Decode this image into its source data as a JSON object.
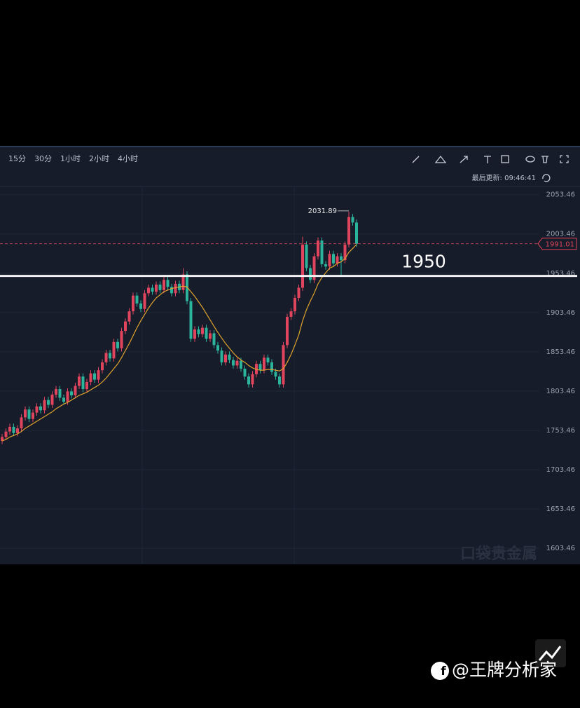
{
  "chart_data": {
    "type": "candlestick",
    "toolbar": {
      "intervals": [
        "15分",
        "30分",
        "1小时",
        "2小时",
        "4小时"
      ],
      "last_update": "最后更新: 09:46:41"
    },
    "ylim": [
      1583,
      2063
    ],
    "yticks": [
      2053.46,
      2003.46,
      1953.46,
      1903.46,
      1853.46,
      1803.46,
      1753.46,
      1703.46,
      1653.46,
      1603.46
    ],
    "up_color": "#e0455d",
    "down_color": "#2bb39c",
    "open": [
      1740,
      1745,
      1752,
      1758,
      1750,
      1756,
      1770,
      1780,
      1768,
      1776,
      1784,
      1779,
      1792,
      1786,
      1799,
      1806,
      1795,
      1790,
      1803,
      1798,
      1810,
      1822,
      1806,
      1815,
      1826,
      1818,
      1830,
      1840,
      1852,
      1845,
      1866,
      1858,
      1880,
      1892,
      1905,
      1925,
      1915,
      1908,
      1928,
      1935,
      1930,
      1939,
      1932,
      1945,
      1936,
      1928,
      1940,
      1932,
      1952,
      1918,
      1870,
      1882,
      1876,
      1884,
      1870,
      1877,
      1862,
      1855,
      1840,
      1850,
      1843,
      1836,
      1842,
      1832,
      1822,
      1812,
      1825,
      1838,
      1830,
      1846,
      1840,
      1828,
      1822,
      1812,
      1862,
      1898,
      1905,
      1922,
      1935,
      1990,
      1960,
      1945,
      1975,
      1995,
      1965,
      1962,
      1978,
      1966,
      1975,
      1970,
      1990,
      2025,
      2018
    ],
    "high": [
      1749,
      1756,
      1762,
      1762,
      1760,
      1774,
      1784,
      1784,
      1780,
      1788,
      1788,
      1796,
      1796,
      1803,
      1810,
      1810,
      1799,
      1807,
      1807,
      1814,
      1826,
      1826,
      1819,
      1830,
      1830,
      1834,
      1844,
      1856,
      1856,
      1870,
      1870,
      1884,
      1896,
      1909,
      1929,
      1929,
      1919,
      1932,
      1939,
      1939,
      1943,
      1943,
      1949,
      1949,
      1940,
      1944,
      1944,
      1960,
      1956,
      1922,
      1886,
      1886,
      1888,
      1888,
      1881,
      1881,
      1866,
      1859,
      1854,
      1854,
      1847,
      1846,
      1846,
      1836,
      1826,
      1829,
      1842,
      1842,
      1850,
      1850,
      1844,
      1832,
      1826,
      1866,
      1902,
      1909,
      1926,
      1939,
      2000,
      1994,
      1964,
      1979,
      1999,
      1999,
      1969,
      1982,
      1982,
      1979,
      1979,
      1994,
      2031.89,
      2029,
      2022
    ],
    "low": [
      1736,
      1741,
      1748,
      1746,
      1746,
      1752,
      1766,
      1764,
      1764,
      1772,
      1775,
      1775,
      1782,
      1782,
      1795,
      1791,
      1786,
      1786,
      1794,
      1794,
      1806,
      1802,
      1802,
      1811,
      1814,
      1814,
      1826,
      1836,
      1841,
      1841,
      1854,
      1854,
      1876,
      1888,
      1901,
      1911,
      1904,
      1904,
      1924,
      1926,
      1926,
      1928,
      1928,
      1932,
      1924,
      1924,
      1928,
      1928,
      1914,
      1866,
      1866,
      1872,
      1872,
      1866,
      1866,
      1858,
      1851,
      1836,
      1836,
      1839,
      1832,
      1832,
      1828,
      1818,
      1808,
      1808,
      1821,
      1826,
      1826,
      1836,
      1824,
      1818,
      1808,
      1808,
      1858,
      1894,
      1901,
      1918,
      1931,
      1956,
      1941,
      1941,
      1971,
      1961,
      1958,
      1958,
      1962,
      1962,
      1950,
      1966,
      1986,
      2014,
      1987
    ],
    "close": [
      1745,
      1752,
      1758,
      1750,
      1756,
      1770,
      1780,
      1768,
      1776,
      1784,
      1779,
      1792,
      1786,
      1799,
      1806,
      1795,
      1790,
      1803,
      1798,
      1810,
      1822,
      1806,
      1815,
      1826,
      1818,
      1830,
      1840,
      1852,
      1845,
      1866,
      1858,
      1880,
      1892,
      1905,
      1925,
      1915,
      1908,
      1928,
      1935,
      1930,
      1939,
      1932,
      1945,
      1936,
      1928,
      1940,
      1932,
      1952,
      1918,
      1870,
      1882,
      1876,
      1884,
      1870,
      1877,
      1862,
      1855,
      1840,
      1850,
      1843,
      1836,
      1842,
      1832,
      1822,
      1812,
      1825,
      1838,
      1830,
      1846,
      1840,
      1828,
      1822,
      1812,
      1862,
      1898,
      1905,
      1922,
      1935,
      1990,
      1960,
      1945,
      1975,
      1995,
      1965,
      1962,
      1978,
      1966,
      1975,
      1970,
      1990,
      2025,
      2018,
      1991.01
    ],
    "ma": {
      "color": "#e0a32e",
      "values": [
        1740,
        1742,
        1745,
        1747,
        1749,
        1752,
        1756,
        1759,
        1762,
        1765,
        1768,
        1771,
        1774,
        1777,
        1781,
        1784,
        1787,
        1789,
        1792,
        1795,
        1798,
        1800,
        1802,
        1805,
        1808,
        1811,
        1815,
        1820,
        1826,
        1832,
        1838,
        1846,
        1855,
        1864,
        1874,
        1884,
        1893,
        1901,
        1909,
        1916,
        1922,
        1926,
        1930,
        1932,
        1934,
        1935,
        1936,
        1937,
        1936,
        1930,
        1924,
        1917,
        1910,
        1902,
        1894,
        1886,
        1878,
        1871,
        1864,
        1858,
        1852,
        1847,
        1843,
        1840,
        1836,
        1833,
        1831,
        1830,
        1830,
        1831,
        1831,
        1830,
        1829,
        1832,
        1840,
        1850,
        1862,
        1875,
        1893,
        1907,
        1918,
        1928,
        1940,
        1948,
        1954,
        1960,
        1962,
        1966,
        1968,
        1972,
        1980,
        1985,
        1990
      ]
    },
    "hline": {
      "value": 1950,
      "color": "#f2f2f2"
    },
    "watermark": "口袋贵金属"
  },
  "footer": {
    "handle": "@王牌分析家"
  }
}
